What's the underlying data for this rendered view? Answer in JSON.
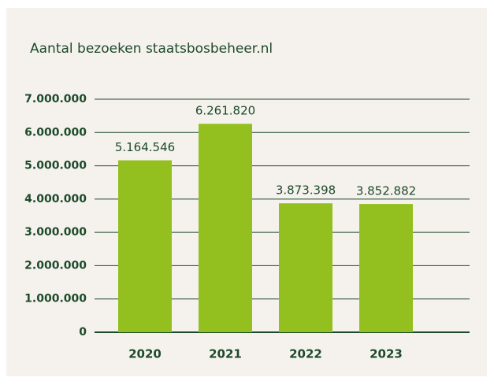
{
  "chart_data": {
    "type": "bar",
    "title": "Aantal bezoeken staatsbosbeheer.nl",
    "categories": [
      "2020",
      "2021",
      "2022",
      "2023"
    ],
    "values": [
      5164546,
      6261820,
      3873398,
      3852882
    ],
    "value_labels": [
      "5.164.546",
      "6.261.820",
      "3.873.398",
      "3.852.882"
    ],
    "color": "#93c01f",
    "ylim": [
      0,
      7000000
    ],
    "yticks": [
      0,
      {
        "value": 1000000,
        "label": "1.000.000"
      },
      {
        "value": 2000000,
        "label": "2.000.000"
      },
      {
        "value": 3000000,
        "label": "3.000.000"
      },
      {
        "value": 4000000,
        "label": "4.000.000"
      },
      {
        "value": 5000000,
        "label": "5.000.000"
      },
      {
        "value": 6000000,
        "label": "6.000.000"
      },
      {
        "value": 7000000,
        "label": "7.000.000"
      }
    ],
    "grid": true
  }
}
